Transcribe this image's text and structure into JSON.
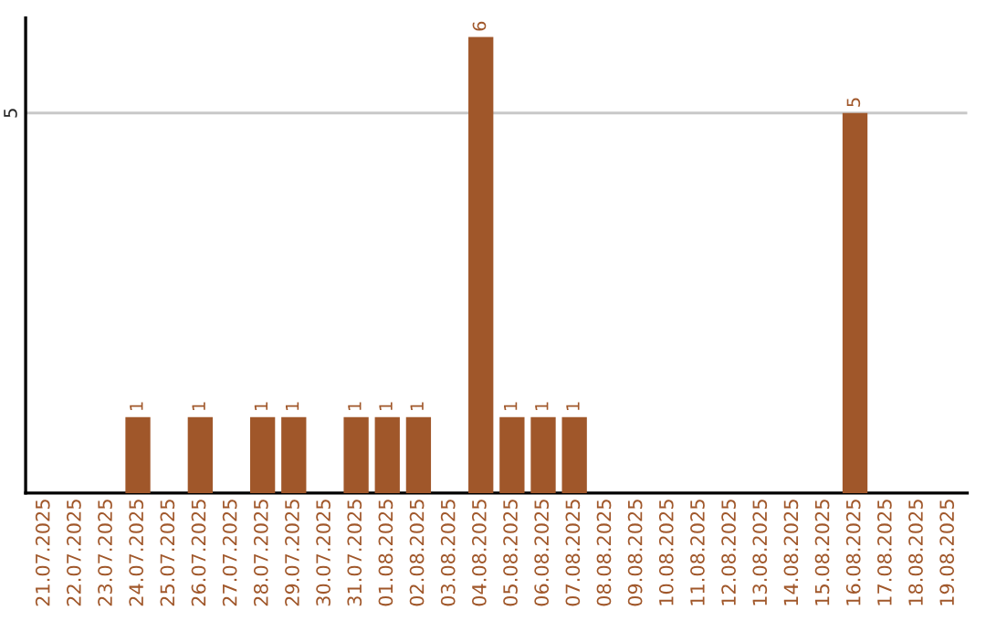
{
  "chart_data": {
    "type": "bar",
    "categories": [
      "21.07.2025",
      "22.07.2025",
      "23.07.2025",
      "24.07.2025",
      "25.07.2025",
      "26.07.2025",
      "27.07.2025",
      "28.07.2025",
      "29.07.2025",
      "30.07.2025",
      "31.07.2025",
      "01.08.2025",
      "02.08.2025",
      "03.08.2025",
      "04.08.2025",
      "05.08.2025",
      "06.08.2025",
      "07.08.2025",
      "08.08.2025",
      "09.08.2025",
      "10.08.2025",
      "11.08.2025",
      "12.08.2025",
      "13.08.2025",
      "14.08.2025",
      "15.08.2025",
      "16.08.2025",
      "17.08.2025",
      "18.08.2025",
      "19.08.2025"
    ],
    "values": [
      null,
      null,
      null,
      1,
      null,
      1,
      null,
      1,
      1,
      null,
      1,
      1,
      1,
      null,
      6,
      1,
      1,
      1,
      null,
      null,
      null,
      null,
      null,
      null,
      null,
      null,
      5,
      null,
      null,
      null
    ],
    "value_labels": [
      null,
      null,
      null,
      "1",
      null,
      "1",
      null,
      "1",
      "1",
      null,
      "1",
      "1",
      "1",
      null,
      "6",
      "1",
      "1",
      "1",
      null,
      null,
      null,
      null,
      null,
      null,
      null,
      null,
      "5",
      null,
      null,
      null
    ],
    "color": "#a0572a",
    "ylim": [
      0,
      6.25
    ],
    "yticks": [
      5
    ],
    "grid": "y"
  }
}
